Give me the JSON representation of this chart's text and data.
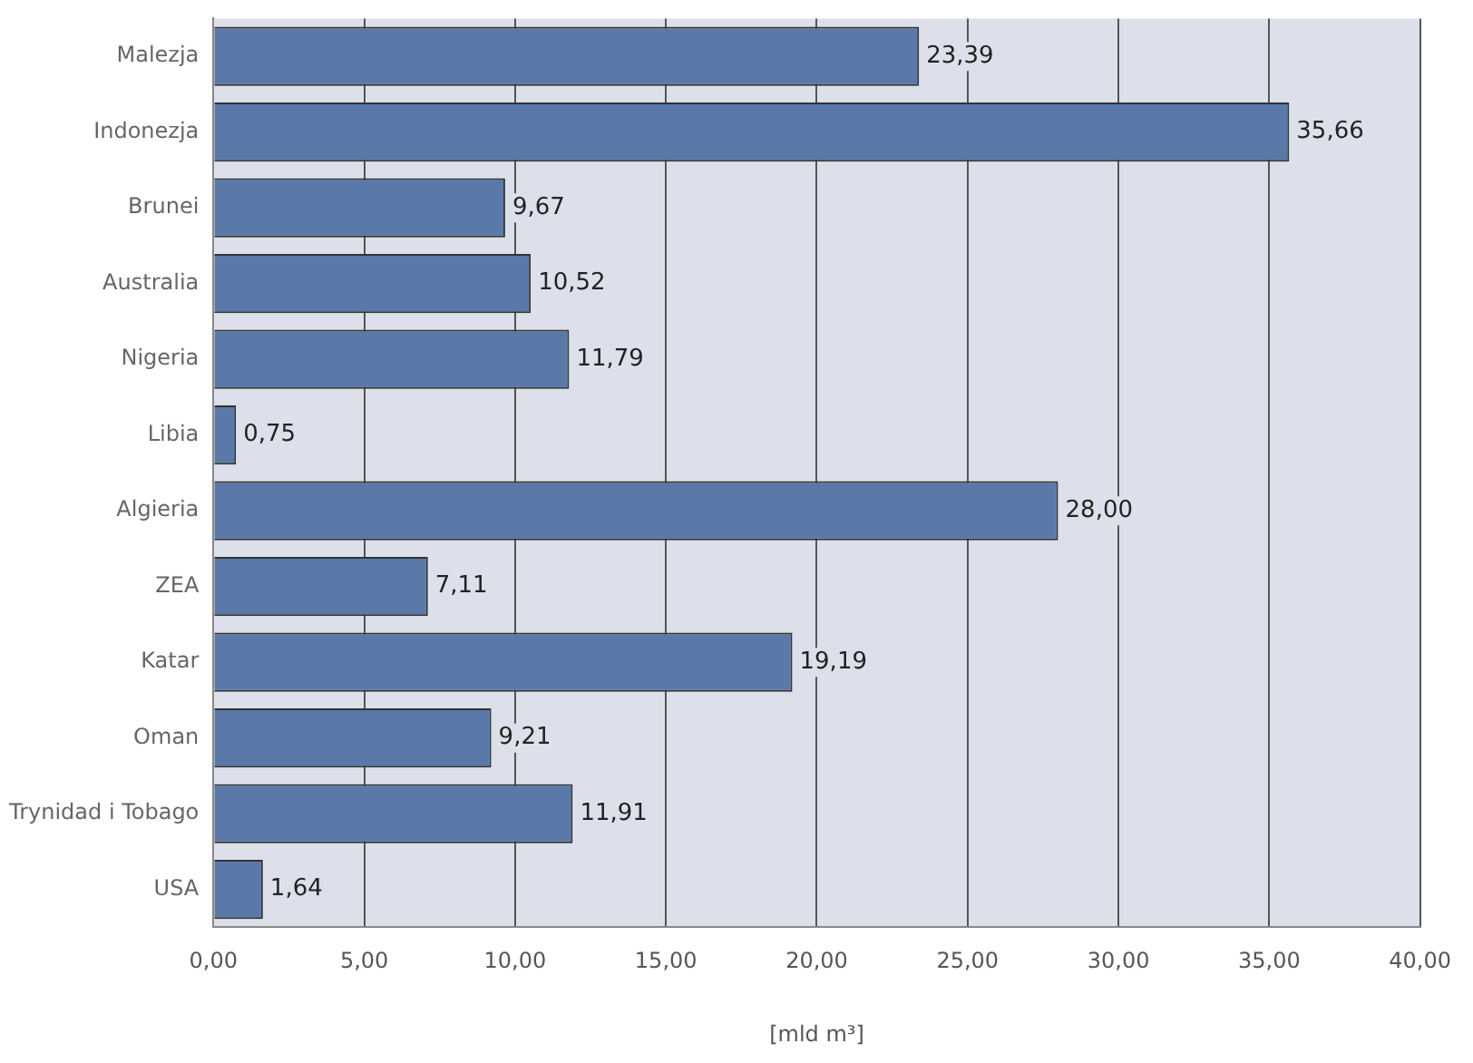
{
  "chart_data": {
    "type": "bar",
    "orientation": "horizontal",
    "xlabel": "[mld m³]",
    "categories": [
      "Malezja",
      "Indonezja",
      "Brunei",
      "Australia",
      "Nigeria",
      "Libia",
      "Algieria",
      "ZEA",
      "Katar",
      "Oman",
      "Trynidad i Tobago",
      "USA"
    ],
    "values": [
      23.39,
      35.66,
      9.67,
      10.52,
      11.79,
      0.75,
      28.0,
      7.11,
      19.19,
      9.21,
      11.91,
      1.64
    ],
    "value_labels": [
      "23,39",
      "35,66",
      "9,67",
      "10,52",
      "11,79",
      "0,75",
      "28,00",
      "7,11",
      "19,19",
      "9,21",
      "11,91",
      "1,64"
    ],
    "color": "#5a78a8",
    "xlim": [
      0,
      40
    ],
    "xticks": [
      {
        "value": 0,
        "label": "0,00"
      },
      {
        "value": 5,
        "label": "5,00"
      },
      {
        "value": 10,
        "label": "10,00"
      },
      {
        "value": 15,
        "label": "15,00"
      },
      {
        "value": 20,
        "label": "20,00"
      },
      {
        "value": 25,
        "label": "25,00"
      },
      {
        "value": 30,
        "label": "30,00"
      },
      {
        "value": 35,
        "label": "35,00"
      },
      {
        "value": 40,
        "label": "40,00"
      }
    ],
    "grid": "x",
    "legend": false
  }
}
